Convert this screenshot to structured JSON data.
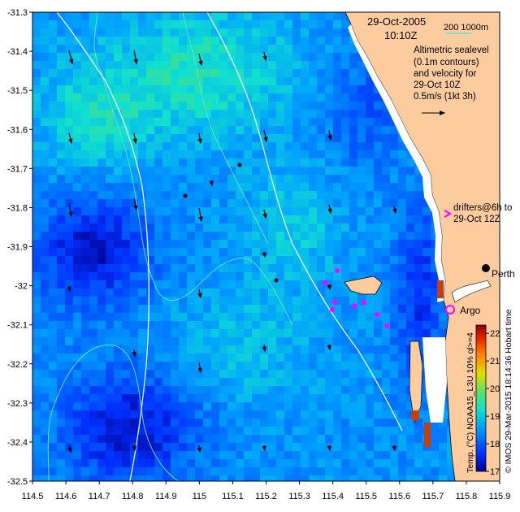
{
  "header": {
    "date": "29-Oct-2005",
    "time": "10:10Z",
    "bathy_legend": "200  1000m"
  },
  "annotation": {
    "lines": [
      "Altimetric sealevel",
      "(0.1m contours)",
      "and velocity for",
      "29-Oct 10Z",
      "0.5m/s (1kt 3h)"
    ]
  },
  "drifters_label": [
    "drifters@6h to",
    "29-Oct 12Z"
  ],
  "places": {
    "perth": "Perth",
    "argo": "Argo"
  },
  "colorbar": {
    "label": "Temp. (°C) NOAA15_L3U 10% ql>=4",
    "ticks": [
      "22",
      "21",
      "20",
      "19",
      "18",
      "17"
    ],
    "min": 17,
    "max": 22.3
  },
  "credit": "© IMOS 29-Mar-2015 18:14:36 Hobart time",
  "axes": {
    "lat_ticks": [
      "-31.3",
      "-31.4",
      "-31.5",
      "-31.6",
      "-31.7",
      "-31.8",
      "-31.9",
      "-32",
      "-32.1",
      "-32.2",
      "-32.3",
      "-32.4",
      "-32.5"
    ],
    "lon_ticks": [
      "114.5",
      "114.6",
      "114.7",
      "114.8",
      "114.9",
      "115",
      "115.1",
      "115.2",
      "115.3",
      "115.4",
      "115.5",
      "115.6",
      "115.7",
      "115.8",
      "115.9"
    ],
    "lat_range": [
      -32.5,
      -31.3
    ],
    "lon_range": [
      114.5,
      115.9
    ]
  },
  "colors": {
    "land": "#fccb9e",
    "contour": "#ffffff",
    "bathy_contour": "#66ddcc",
    "drifter": "#ff00ff"
  }
}
